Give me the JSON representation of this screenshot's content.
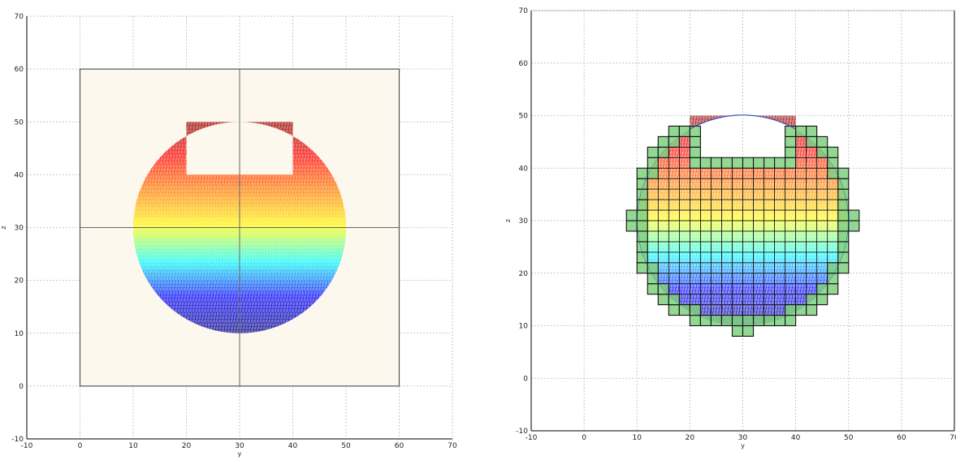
{
  "chart_data": [
    {
      "type": "area",
      "panel": "left",
      "xlabel": "y",
      "ylabel": "z",
      "xlim": [
        -10,
        70
      ],
      "ylim": [
        -10,
        70
      ],
      "x_ticks": [
        "-10",
        "0",
        "10",
        "20",
        "30",
        "40",
        "50",
        "60",
        "70"
      ],
      "y_ticks": [
        "-10",
        "0",
        "10",
        "20",
        "30",
        "40",
        "50",
        "60",
        "70"
      ],
      "grid": true,
      "boundary_rectangle": {
        "y": [
          0,
          60
        ],
        "z": [
          0,
          60
        ],
        "fill": "#fdf8ee"
      },
      "center_lines": {
        "y": 30,
        "z": 30
      },
      "section": {
        "shape": "circle with rectangular notch removed",
        "circle_center": [
          30,
          30
        ],
        "radius": 20,
        "notch": {
          "y": [
            20,
            40
          ],
          "z": [
            40,
            50
          ]
        }
      },
      "colormap": [
        "#00008b",
        "#0000ff",
        "#00ffff",
        "#ffff00",
        "#ff8000",
        "#ff0000",
        "#8b0000"
      ]
    },
    {
      "type": "area",
      "panel": "right",
      "xlabel": "y",
      "ylabel": "z",
      "xlim": [
        -10,
        70
      ],
      "ylim": [
        -10,
        70
      ],
      "x_ticks": [
        "-10",
        "0",
        "10",
        "20",
        "30",
        "40",
        "50",
        "60",
        "70"
      ],
      "y_ticks": [
        "-10",
        "0",
        "10",
        "20",
        "30",
        "40",
        "50",
        "60",
        "70"
      ],
      "grid": true,
      "section": {
        "shape": "circle with rectangular notch removed",
        "circle_center": [
          30,
          30
        ],
        "radius": 20,
        "notch": {
          "y": [
            20,
            40
          ],
          "z": [
            40,
            50
          ]
        }
      },
      "mesh_cell_size": 2,
      "cell_colors": {
        "inside": "transparent",
        "boundary": "#7fd07f"
      },
      "colormap": [
        "#00008b",
        "#0000ff",
        "#00ffff",
        "#ffff00",
        "#ff8000",
        "#ff0000",
        "#8b0000"
      ]
    }
  ]
}
